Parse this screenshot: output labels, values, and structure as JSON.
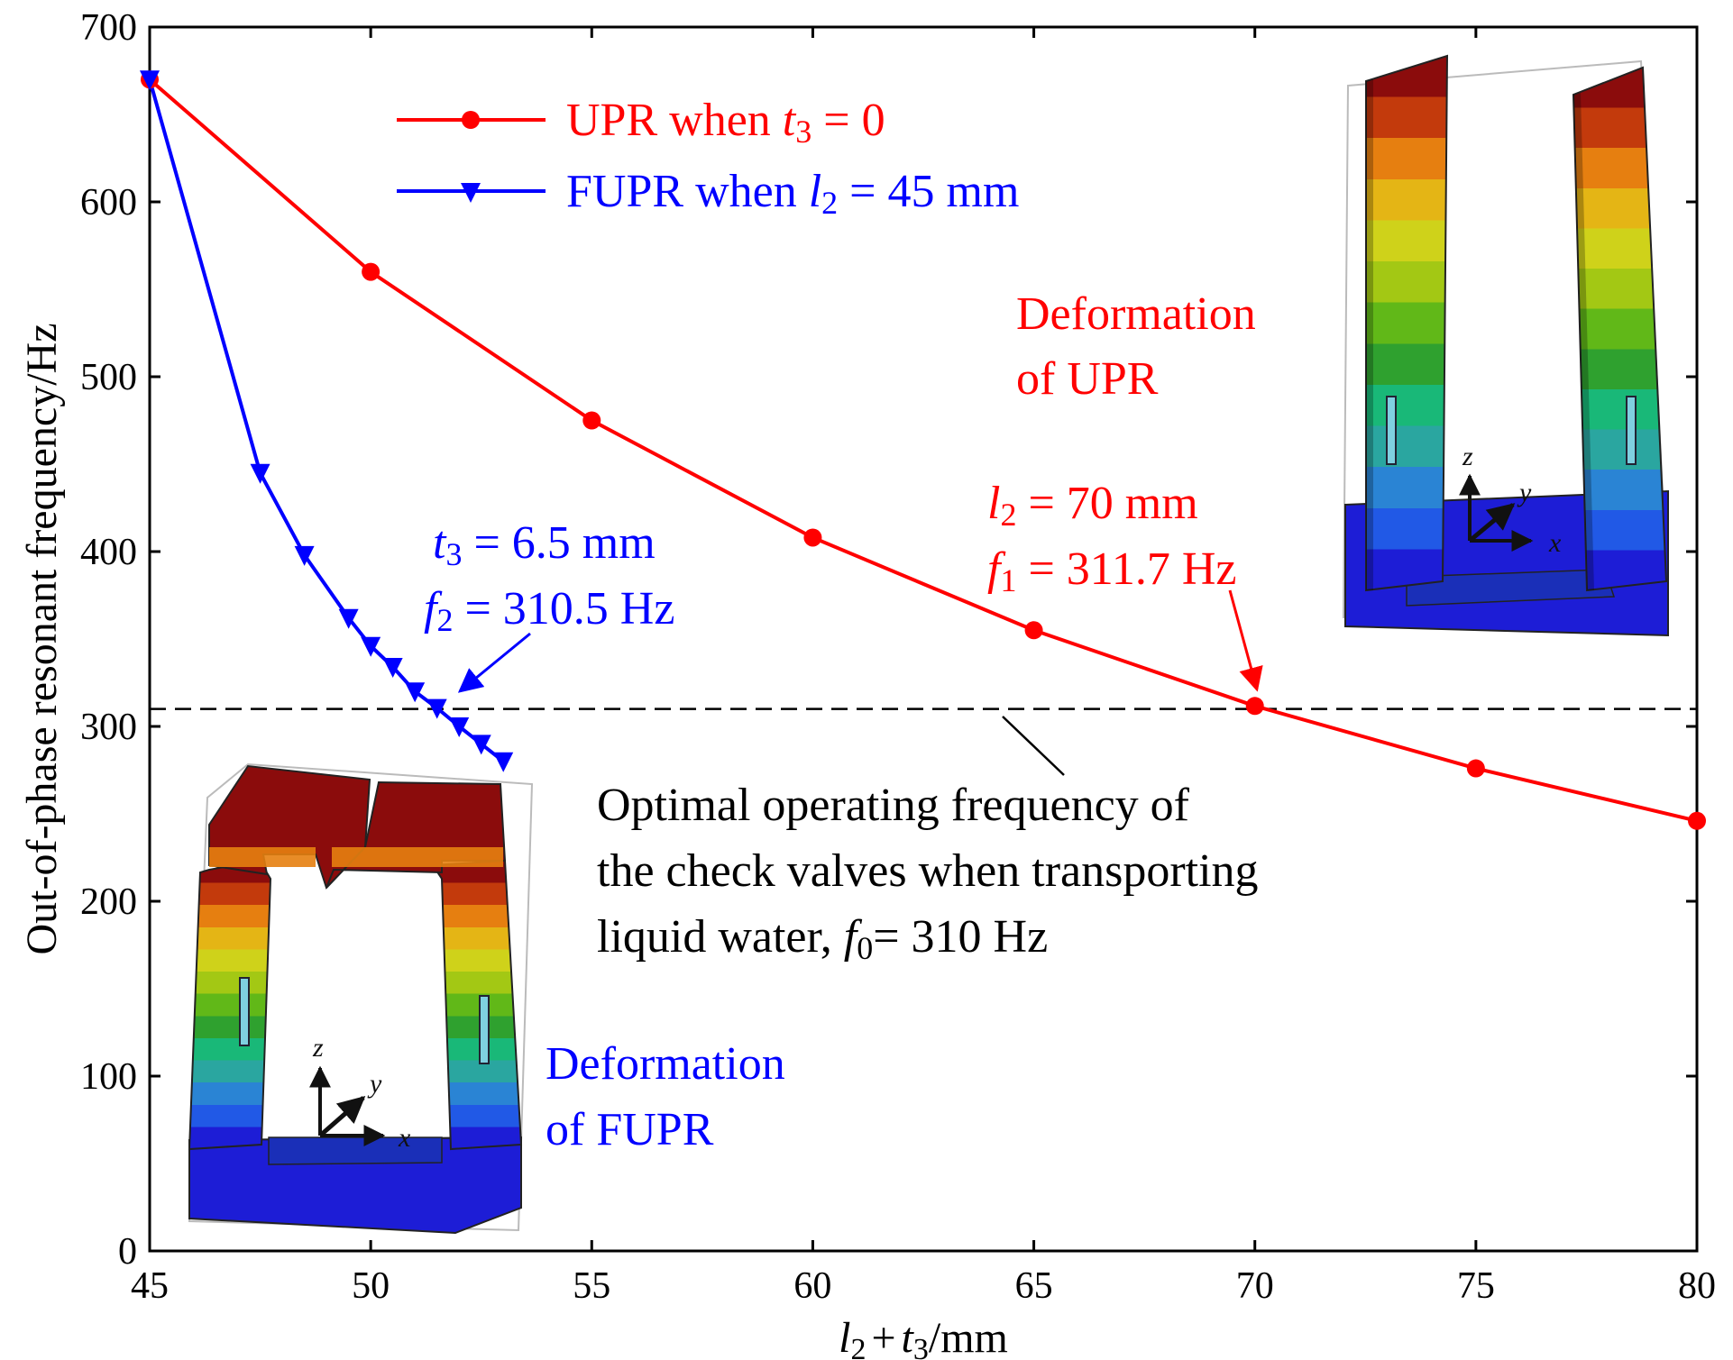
{
  "chart_data": {
    "type": "line",
    "xlabel": {
      "part1_var": "l",
      "part1_sub": "2",
      "op": "+",
      "part2_var": "t",
      "part2_sub": "3",
      "unit": "/mm"
    },
    "ylabel": "Out-of-phase resonant frequency/Hz",
    "xlim": [
      45,
      80
    ],
    "ylim": [
      0,
      700
    ],
    "x_ticks": [
      45,
      50,
      55,
      60,
      65,
      70,
      75,
      80
    ],
    "y_ticks": [
      0,
      100,
      200,
      300,
      400,
      500,
      600,
      700
    ],
    "colors": {
      "upr": "#ff0000",
      "fupr": "#0000ff",
      "reference": "#000000"
    },
    "series": [
      {
        "id": "upr",
        "name_prefix": "UPR when ",
        "name_var": "t",
        "name_sub": "3",
        "name_suffix": " = 0",
        "marker": "circle",
        "x": [
          45,
          50,
          55,
          60,
          65,
          70,
          75,
          80
        ],
        "y": [
          670,
          560,
          475,
          408,
          355,
          311.7,
          276,
          246
        ]
      },
      {
        "id": "fupr",
        "name_prefix": "FUPR when ",
        "name_var": "l",
        "name_sub": "2",
        "name_suffix": " = 45 mm",
        "marker": "triangle-down",
        "x": [
          45,
          47.5,
          48.5,
          49.5,
          50,
          50.5,
          51,
          51.5,
          52,
          52.5,
          53
        ],
        "y": [
          670,
          445,
          398,
          362,
          346,
          334,
          320,
          310.5,
          300,
          290,
          280
        ]
      }
    ],
    "reference_line": {
      "y": 310,
      "label_lines": [
        "Optimal operating frequency of",
        "the check valves when transporting"
      ],
      "label_last_prefix": "liquid water, ",
      "label_last_var": "f",
      "label_last_sub": "0",
      "label_last_suffix": "= 310 Hz"
    },
    "annotations": {
      "upr_point": {
        "var1": "l",
        "sub1": "2",
        "val1": " = 70 mm",
        "var2": "f",
        "sub2": "1",
        "val2": " = 311.7 Hz",
        "x": 70,
        "y": 311.7
      },
      "fupr_point": {
        "var1": "t",
        "sub1": "3",
        "val1": " = 6.5 mm",
        "var2": "f",
        "sub2": "2",
        "val2": " = 310.5 Hz",
        "x": 51.5,
        "y": 310.5
      },
      "upr_deformation": [
        "Deformation",
        "of UPR"
      ],
      "fupr_deformation": [
        "Deformation",
        "of FUPR"
      ]
    },
    "insets": {
      "axes_letters": {
        "z": "z",
        "y": "y",
        "x": "x"
      },
      "contour_colors": [
        "#1d1dd6",
        "#2159e6",
        "#2a84d4",
        "#2aa6a0",
        "#19b878",
        "#2fa12f",
        "#61b818",
        "#a3c814",
        "#cfd21a",
        "#e4b515",
        "#e67f10",
        "#c33a0c",
        "#8b0c0c"
      ]
    }
  }
}
